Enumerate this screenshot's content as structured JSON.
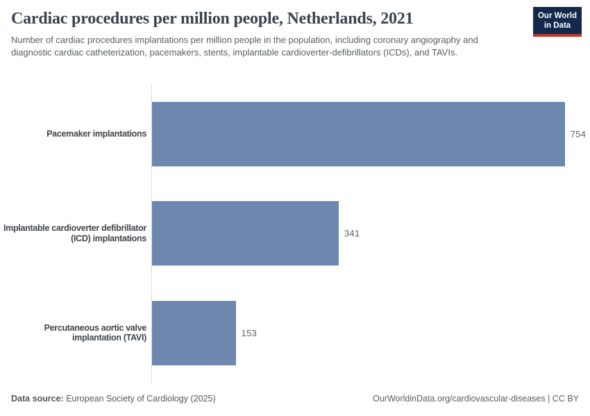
{
  "header": {
    "title": "Cardiac procedures per million people, Netherlands, 2021",
    "subtitle": "Number of cardiac procedures implantations per million people in the population, including coronary angiography and diagnostic cardiac catheterization, pacemakers, stents, implantable cardioverter-defibrillators (ICDs), and TAVIs.",
    "logo": {
      "line1": "Our World",
      "line2": "in Data"
    }
  },
  "chart_data": {
    "type": "bar",
    "orientation": "horizontal",
    "title": "Cardiac procedures per million people, Netherlands, 2021",
    "categories": [
      "Pacemaker implantations",
      "Implantable cardioverter defibrillator (ICD) implantations",
      "Percutaneous aortic valve implantation (TAVI)"
    ],
    "values": [
      754,
      341,
      153
    ],
    "value_labels": [
      "754",
      "341",
      "153"
    ],
    "xlabel": "",
    "ylabel": "",
    "xlim": [
      0,
      800
    ],
    "grid": false,
    "legend": false,
    "bar_color": "#6e87ae"
  },
  "footer": {
    "source_label": "Data source:",
    "source_value": " European Society of Cardiology (2025)",
    "link": "OurWorldinData.org/cardiovascular-diseases | CC BY"
  },
  "colors": {
    "bar": "#6e87ae",
    "title_text": "#3b424c",
    "logo_background": "#13294b",
    "logo_stripe": "#c0342b",
    "axis_line": "#dbdbdb"
  }
}
